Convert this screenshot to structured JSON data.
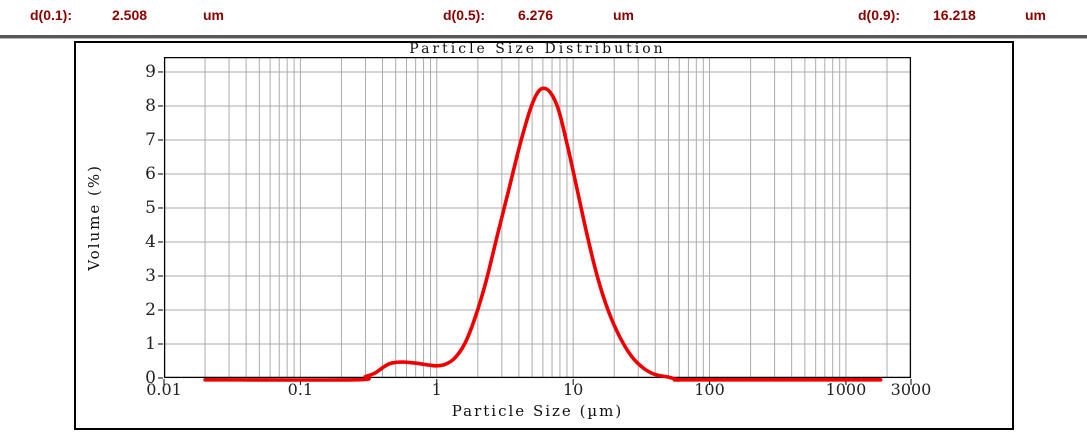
{
  "header": {
    "items": [
      {
        "label": "d(0.1):",
        "value": "2.508",
        "unit": "um"
      },
      {
        "label": "d(0.5):",
        "value": "6.276",
        "unit": "um"
      },
      {
        "label": "d(0.9):",
        "value": "16.218",
        "unit": "um"
      }
    ]
  },
  "chart_data": {
    "type": "line",
    "title": "Particle Size Distribution",
    "xlabel": "Particle Size (µm)",
    "ylabel": "Volume (%)",
    "x_scale": "log",
    "xlim": [
      0.01,
      3000
    ],
    "ylim": [
      0,
      9.44
    ],
    "grid": true,
    "legend": "none",
    "x_ticks": [
      {
        "value": 0.01,
        "label": "0.01"
      },
      {
        "value": 0.1,
        "label": "0.1"
      },
      {
        "value": 1,
        "label": "1"
      },
      {
        "value": 10,
        "label": "10"
      },
      {
        "value": 100,
        "label": "100"
      },
      {
        "value": 1000,
        "label": "1000"
      },
      {
        "value": 3000,
        "label": "3000"
      }
    ],
    "y_ticks": [
      0,
      1,
      2,
      3,
      4,
      5,
      6,
      7,
      8,
      9
    ],
    "colors": {
      "line": "#ee0000",
      "grid": "#ababab",
      "axis": "#000000",
      "header_text": "#8b0000"
    },
    "series": [
      {
        "name": "Volume",
        "points": [
          [
            0.02,
            0
          ],
          [
            0.25,
            0
          ],
          [
            0.3,
            0.04
          ],
          [
            0.35,
            0.14
          ],
          [
            0.4,
            0.3
          ],
          [
            0.45,
            0.42
          ],
          [
            0.5,
            0.46
          ],
          [
            0.57,
            0.47
          ],
          [
            0.65,
            0.45
          ],
          [
            0.75,
            0.42
          ],
          [
            0.88,
            0.38
          ],
          [
            1.0,
            0.36
          ],
          [
            1.15,
            0.4
          ],
          [
            1.35,
            0.58
          ],
          [
            1.6,
            1.0
          ],
          [
            1.9,
            1.75
          ],
          [
            2.3,
            2.85
          ],
          [
            2.8,
            4.25
          ],
          [
            3.4,
            5.6
          ],
          [
            4.1,
            6.9
          ],
          [
            4.8,
            7.85
          ],
          [
            5.4,
            8.35
          ],
          [
            6.0,
            8.52
          ],
          [
            6.8,
            8.4
          ],
          [
            7.8,
            7.9
          ],
          [
            9.0,
            6.9
          ],
          [
            10.5,
            5.7
          ],
          [
            12.5,
            4.3
          ],
          [
            15,
            3.0
          ],
          [
            18,
            2.0
          ],
          [
            22,
            1.2
          ],
          [
            27,
            0.62
          ],
          [
            33,
            0.28
          ],
          [
            40,
            0.1
          ],
          [
            50,
            0.025
          ],
          [
            60,
            0.005
          ],
          [
            75,
            0
          ],
          [
            1800,
            0
          ]
        ]
      }
    ]
  }
}
